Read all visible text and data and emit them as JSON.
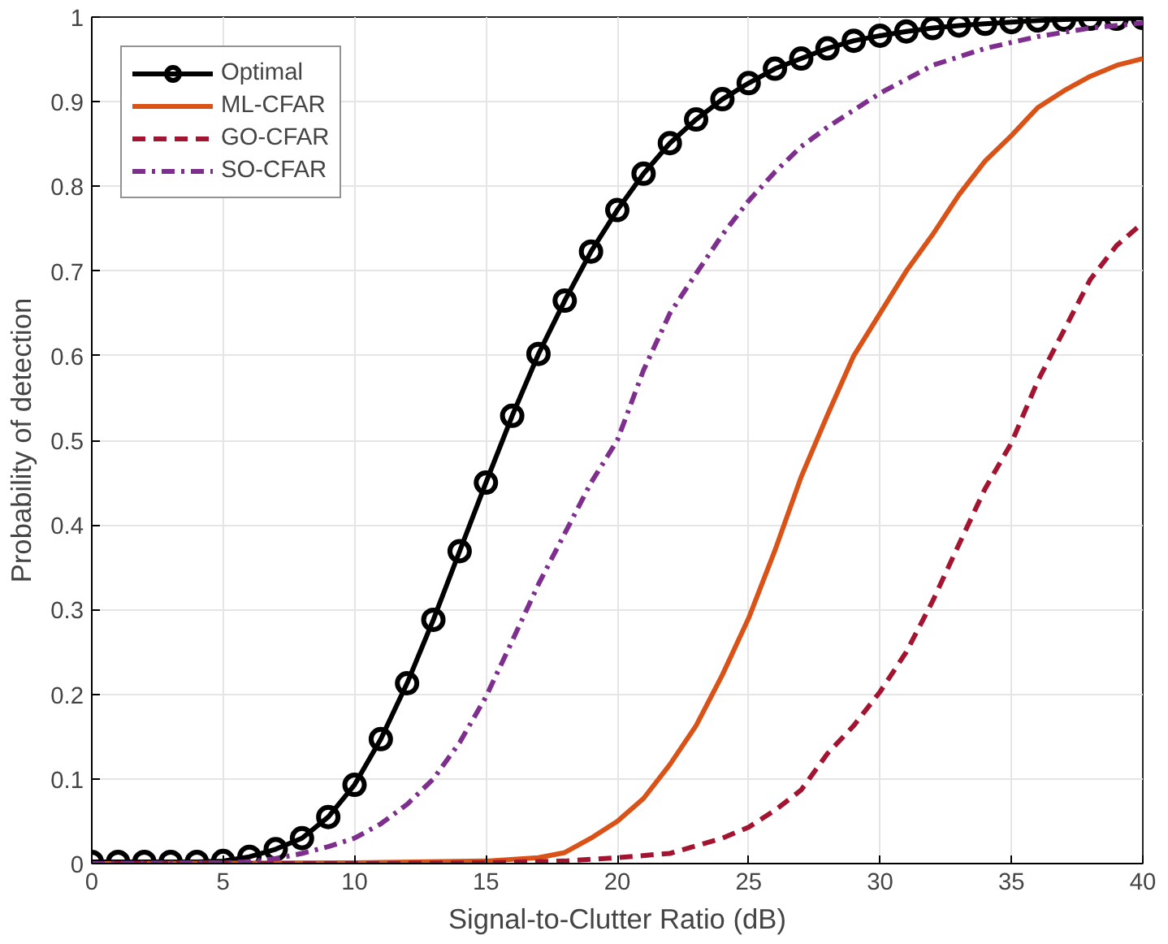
{
  "chart_data": {
    "type": "line",
    "xlabel": "Signal-to-Clutter Ratio (dB)",
    "ylabel": "Probability of detection",
    "xlim": [
      0,
      40
    ],
    "ylim": [
      0,
      1
    ],
    "xticks": [
      0,
      5,
      10,
      15,
      20,
      25,
      30,
      35,
      40
    ],
    "yticks": [
      0,
      0.1,
      0.2,
      0.3,
      0.4,
      0.5,
      0.6,
      0.7,
      0.8,
      0.9,
      1
    ],
    "grid": true,
    "legend": "top left",
    "series": [
      {
        "name": "Optimal",
        "color": "#000000",
        "marker": "circle",
        "line_style": "solid",
        "x": [
          0,
          1,
          2,
          3,
          4,
          5,
          6,
          7,
          8,
          9,
          10,
          11,
          12,
          13,
          14,
          15,
          16,
          17,
          18,
          19,
          20,
          21,
          22,
          23,
          24,
          25,
          26,
          27,
          28,
          29,
          30,
          31,
          32,
          33,
          34,
          35,
          36,
          37,
          38,
          39,
          40
        ],
        "values": [
          0.002,
          0.002,
          0.002,
          0.002,
          0.002,
          0.003,
          0.008,
          0.017,
          0.03,
          0.055,
          0.093,
          0.147,
          0.213,
          0.288,
          0.369,
          0.45,
          0.529,
          0.602,
          0.665,
          0.723,
          0.772,
          0.815,
          0.851,
          0.879,
          0.903,
          0.922,
          0.939,
          0.951,
          0.963,
          0.972,
          0.978,
          0.983,
          0.987,
          0.99,
          0.992,
          0.994,
          0.996,
          0.997,
          0.998,
          0.998,
          0.999
        ]
      },
      {
        "name": "ML-CFAR",
        "color": "#d95319",
        "marker": "none",
        "line_style": "solid",
        "x": [
          0,
          10,
          15,
          17,
          18,
          19,
          20,
          21,
          22,
          23,
          24,
          25,
          26,
          27,
          28,
          29,
          30,
          31,
          32,
          33,
          34,
          35,
          36,
          37,
          38,
          39,
          40
        ],
        "values": [
          0,
          0.001,
          0.003,
          0.007,
          0.013,
          0.03,
          0.05,
          0.077,
          0.117,
          0.163,
          0.223,
          0.29,
          0.37,
          0.457,
          0.53,
          0.6,
          0.65,
          0.7,
          0.743,
          0.79,
          0.83,
          0.86,
          0.893,
          0.913,
          0.93,
          0.943,
          0.951
        ]
      },
      {
        "name": "GO-CFAR",
        "color": "#a2142f",
        "marker": "none",
        "line_style": "dashed",
        "x": [
          0,
          10,
          15,
          18,
          20,
          22,
          24,
          25,
          26,
          27,
          28,
          29,
          30,
          31,
          32,
          33,
          34,
          35,
          36,
          37,
          38,
          39,
          40
        ],
        "values": [
          0,
          0,
          0.001,
          0.003,
          0.007,
          0.012,
          0.03,
          0.043,
          0.063,
          0.087,
          0.13,
          0.163,
          0.203,
          0.25,
          0.31,
          0.377,
          0.443,
          0.497,
          0.57,
          0.63,
          0.69,
          0.73,
          0.757
        ]
      },
      {
        "name": "SO-CFAR",
        "color": "#7e2f8e",
        "marker": "none",
        "line_style": "dashdot",
        "x": [
          0,
          5,
          6,
          7,
          8,
          9,
          10,
          11,
          12,
          13,
          14,
          15,
          16,
          17,
          18,
          19,
          20,
          21,
          22,
          23,
          24,
          25,
          26,
          27,
          28,
          30,
          32,
          34,
          36,
          38,
          40
        ],
        "values": [
          0,
          0.001,
          0.002,
          0.006,
          0.012,
          0.02,
          0.03,
          0.047,
          0.07,
          0.1,
          0.143,
          0.197,
          0.263,
          0.33,
          0.39,
          0.45,
          0.5,
          0.583,
          0.65,
          0.697,
          0.743,
          0.783,
          0.817,
          0.847,
          0.87,
          0.91,
          0.943,
          0.963,
          0.977,
          0.987,
          0.993
        ]
      }
    ]
  }
}
